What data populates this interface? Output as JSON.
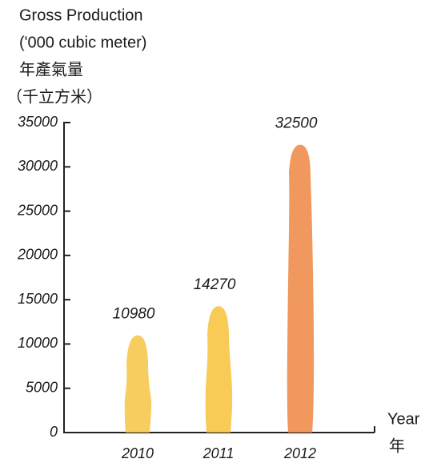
{
  "chart_data": {
    "type": "bar",
    "y_label": [
      "Gross Production",
      "('000 cubic meter)",
      "年產氣量",
      "（千立方米）"
    ],
    "x_label": [
      "Year",
      "年"
    ],
    "categories": [
      "2010",
      "2011",
      "2012"
    ],
    "values": [
      10980,
      14270,
      32500
    ],
    "colors": [
      "#f6c64a",
      "#f7c440",
      "#ef8a48"
    ],
    "ylim": [
      0,
      35000
    ],
    "yticks": [
      0,
      5000,
      10000,
      15000,
      20000,
      25000,
      30000,
      35000
    ]
  }
}
